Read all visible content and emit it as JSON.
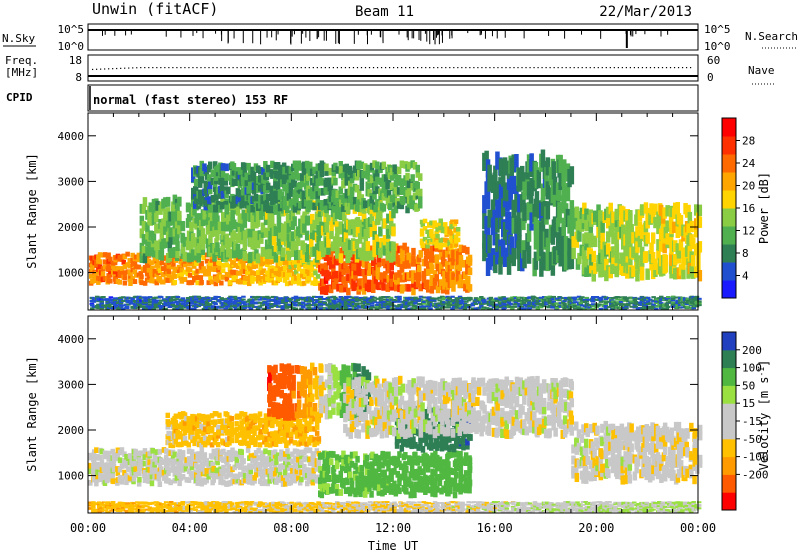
{
  "header": {
    "radar": "Unwin (fitACF)",
    "beam": "Beam 11",
    "date": "22/Mar/2013"
  },
  "status_panels": {
    "nsky": {
      "label": "N.Sky",
      "ticks_left": [
        "10^5",
        "10^0"
      ]
    },
    "nsearch": {
      "label": "N.Search",
      "ticks_right": [
        "10^5",
        "10^0"
      ]
    },
    "freq": {
      "label_line1": "Freq.",
      "label_line2": "[MHz]",
      "ticks_left": [
        "18",
        "8"
      ]
    },
    "nave": {
      "label": "Nave",
      "ticks_right": [
        "60",
        "0"
      ]
    },
    "cpid": {
      "label": "CPID",
      "text": "normal (fast stereo) 153 RF"
    }
  },
  "colors": {
    "power": [
      "#1a1aff",
      "#2050d0",
      "#2f7f55",
      "#50b050",
      "#8acd45",
      "#ffd400",
      "#ffa500",
      "#ff6a00",
      "#ff3000",
      "#ff0000"
    ],
    "velocity": [
      "#ff0000",
      "#ff5a00",
      "#ff9a00",
      "#ffc000",
      "#c8c8c8",
      "#c8c8c8",
      "#99e040",
      "#50b840",
      "#2f7f55",
      "#2040c0"
    ]
  },
  "chart_data": [
    {
      "type": "heatmap",
      "title": "Power",
      "xlabel": "",
      "ylabel": "Slant Range [km]",
      "x_range_hours": [
        0,
        24
      ],
      "ylim": [
        180,
        4500
      ],
      "x_ticks": [
        "00:00",
        "04:00",
        "08:00",
        "12:00",
        "16:00",
        "20:00",
        "00:00"
      ],
      "y_ticks": [
        1000,
        2000,
        3000,
        4000
      ],
      "colorbar": {
        "label": "Power [dB]",
        "ticks": [
          4,
          8,
          12,
          16,
          20,
          24,
          28
        ],
        "range": [
          0,
          32
        ]
      },
      "regions": [
        {
          "t0": 0.0,
          "t1": 9.0,
          "r0": 700,
          "r1": 1350,
          "v0": 24,
          "v1": 18
        },
        {
          "t0": 9.0,
          "t1": 15.0,
          "r0": 500,
          "r1": 1500,
          "v0": 26,
          "v1": 22
        },
        {
          "t0": 2.0,
          "t1": 12.0,
          "r0": 1200,
          "r1": 2500,
          "v0": 12,
          "v1": 15
        },
        {
          "t0": 4.0,
          "t1": 13.0,
          "r0": 2300,
          "r1": 3300,
          "v0": 8,
          "v1": 12
        },
        {
          "t0": 13.0,
          "t1": 14.5,
          "r0": 1500,
          "r1": 2100,
          "v0": 16,
          "v1": 18
        },
        {
          "t0": 15.5,
          "t1": 19.0,
          "r0": 900,
          "r1": 3300,
          "v0": 6,
          "v1": 10
        },
        {
          "t0": 19.0,
          "t1": 24.0,
          "r0": 800,
          "r1": 2300,
          "v0": 14,
          "v1": 18
        },
        {
          "t0": 0.0,
          "t1": 24.0,
          "r0": 180,
          "r1": 450,
          "v0": 6,
          "v1": 8
        }
      ]
    },
    {
      "type": "heatmap",
      "title": "Velocity",
      "xlabel": "Time UT",
      "ylabel": "Slant Range [km]",
      "x_range_hours": [
        0,
        24
      ],
      "ylim": [
        180,
        4500
      ],
      "x_ticks": [
        "00:00",
        "04:00",
        "08:00",
        "12:00",
        "16:00",
        "20:00",
        "00:00"
      ],
      "y_ticks": [
        1000,
        2000,
        3000,
        4000
      ],
      "colorbar": {
        "label": "Velocity [m s-1]",
        "ticks": [
          200,
          100,
          50,
          15,
          -15,
          -50,
          -100,
          -200
        ]
      },
      "regions": [
        {
          "t0": 0.0,
          "t1": 9.0,
          "r0": 750,
          "r1": 1500,
          "v0": 0,
          "v1": 0
        },
        {
          "t0": 3.0,
          "t1": 9.0,
          "r0": 1600,
          "r1": 2300,
          "v0": -30,
          "v1": -40
        },
        {
          "t0": 7.0,
          "t1": 11.0,
          "r0": 2200,
          "r1": 3300,
          "v0": -200,
          "v1": 150
        },
        {
          "t0": 9.0,
          "t1": 15.0,
          "r0": 500,
          "r1": 1400,
          "v0": 60,
          "v1": 80
        },
        {
          "t0": 12.0,
          "t1": 15.0,
          "r0": 1500,
          "r1": 2400,
          "v0": 120,
          "v1": 200
        },
        {
          "t0": 10.0,
          "t1": 19.0,
          "r0": 1800,
          "r1": 3000,
          "v0": 0,
          "v1": 0
        },
        {
          "t0": 19.0,
          "t1": 24.0,
          "r0": 800,
          "r1": 2000,
          "v0": 0,
          "v1": -10
        },
        {
          "t0": 0.0,
          "t1": 24.0,
          "r0": 180,
          "r1": 400,
          "v0": -40,
          "v1": 20
        }
      ]
    }
  ],
  "time_axis": {
    "label": "Time UT",
    "ticks": [
      "00:00",
      "04:00",
      "08:00",
      "12:00",
      "16:00",
      "20:00",
      "00:00"
    ]
  }
}
